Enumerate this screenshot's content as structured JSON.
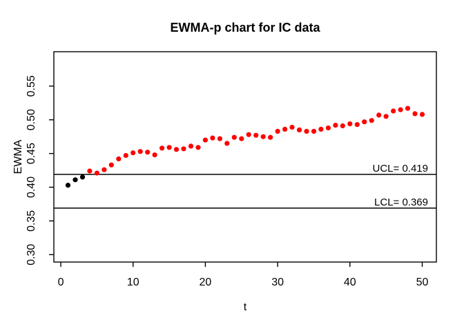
{
  "labels": {
    "ucl": "UCL= 0.419",
    "lcl": "LCL= 0.369"
  },
  "chart_data": {
    "type": "scatter",
    "title": "EWMA-p chart for IC data",
    "xlabel": "t",
    "ylabel": "EWMA",
    "x_ticks": [
      0,
      10,
      20,
      30,
      40,
      50
    ],
    "y_ticks": [
      0.3,
      0.35,
      0.4,
      0.45,
      0.5,
      0.55
    ],
    "xlim": [
      -0.96,
      51.96
    ],
    "ylim": [
      0.289,
      0.601
    ],
    "ucl": 0.419,
    "lcl": 0.369,
    "grid": false,
    "legend": "none",
    "point_color_in_control": "#000000",
    "point_color_signal": "#ff0000",
    "x": [
      1,
      2,
      3,
      4,
      5,
      6,
      7,
      8,
      9,
      10,
      11,
      12,
      13,
      14,
      15,
      16,
      17,
      18,
      19,
      20,
      21,
      22,
      23,
      24,
      25,
      26,
      27,
      28,
      29,
      30,
      31,
      32,
      33,
      34,
      35,
      36,
      37,
      38,
      39,
      40,
      41,
      42,
      43,
      44,
      45,
      46,
      47,
      48,
      49,
      50
    ],
    "series": [
      {
        "name": "EWMA",
        "values": [
          0.403,
          0.411,
          0.415,
          0.424,
          0.421,
          0.426,
          0.433,
          0.442,
          0.447,
          0.451,
          0.453,
          0.452,
          0.448,
          0.458,
          0.459,
          0.456,
          0.457,
          0.461,
          0.459,
          0.47,
          0.473,
          0.472,
          0.465,
          0.474,
          0.472,
          0.478,
          0.477,
          0.475,
          0.474,
          0.483,
          0.486,
          0.489,
          0.485,
          0.483,
          0.483,
          0.486,
          0.488,
          0.492,
          0.491,
          0.494,
          0.493,
          0.497,
          0.499,
          0.507,
          0.505,
          0.513,
          0.515,
          0.517,
          0.509,
          0.508
        ],
        "colors": [
          "black",
          "black",
          "black",
          "red",
          "red",
          "red",
          "red",
          "red",
          "red",
          "red",
          "red",
          "red",
          "red",
          "red",
          "red",
          "red",
          "red",
          "red",
          "red",
          "red",
          "red",
          "red",
          "red",
          "red",
          "red",
          "red",
          "red",
          "red",
          "red",
          "red",
          "red",
          "red",
          "red",
          "red",
          "red",
          "red",
          "red",
          "red",
          "red",
          "red",
          "red",
          "red",
          "red",
          "red",
          "red",
          "red",
          "red",
          "red",
          "red",
          "red"
        ]
      }
    ]
  }
}
